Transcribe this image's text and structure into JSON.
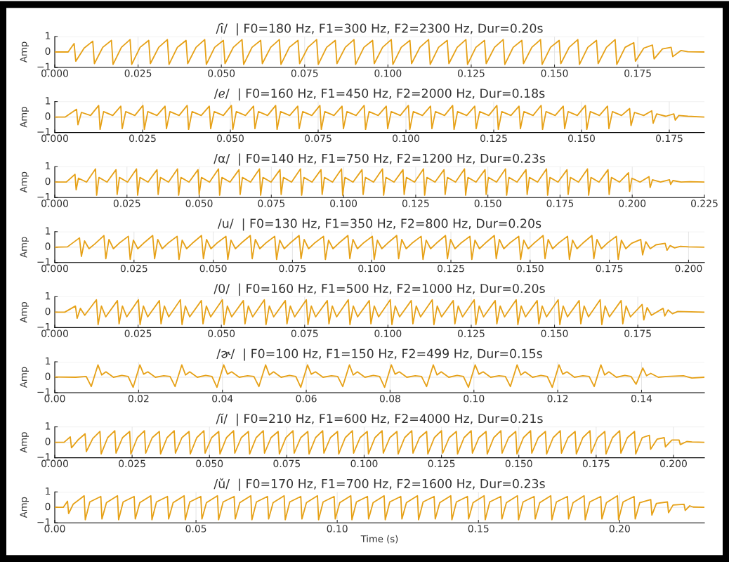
{
  "chart_data": [
    {
      "type": "line",
      "title": "/ȋ/  | F0=180 Hz, F1=300 Hz, F2=2300 Hz, Dur=0.20s",
      "ylabel": "Amp",
      "color": "#e6a117",
      "grid": true,
      "xlim": [
        0,
        0.195
      ],
      "ylim": [
        -1,
        1
      ],
      "xticks": [
        {
          "value": 0,
          "label": "0.000"
        },
        {
          "value": 0.025,
          "label": "0.025"
        },
        {
          "value": 0.05,
          "label": "0.050"
        },
        {
          "value": 0.075,
          "label": "0.075"
        },
        {
          "value": 0.1,
          "label": "0.100"
        },
        {
          "value": 0.125,
          "label": "0.125"
        },
        {
          "value": 0.15,
          "label": "0.150"
        },
        {
          "value": 0.175,
          "label": "0.175"
        }
      ],
      "yticks": [
        -1,
        0,
        1
      ],
      "x": [
        0,
        0.004,
        0.0058,
        0.0063,
        0.0088,
        0.0114,
        0.0119,
        0.0144,
        0.017,
        0.0175,
        0.02,
        0.0226,
        0.0231,
        0.0256,
        0.0282,
        0.0287,
        0.0312,
        0.0338,
        0.0343,
        0.0368,
        0.0394,
        0.0399,
        0.0424,
        0.045,
        0.0455,
        0.048,
        0.0506,
        0.0511,
        0.0536,
        0.0562,
        0.0567,
        0.0592,
        0.0618,
        0.0623,
        0.0648,
        0.0674,
        0.0679,
        0.0704,
        0.073,
        0.0735,
        0.076,
        0.0786,
        0.0791,
        0.0816,
        0.0842,
        0.0847,
        0.0872,
        0.0898,
        0.0903,
        0.0928,
        0.0954,
        0.0959,
        0.0984,
        0.101,
        0.1015,
        0.104,
        0.1066,
        0.1071,
        0.1096,
        0.1122,
        0.1127,
        0.1152,
        0.1178,
        0.1183,
        0.1208,
        0.1234,
        0.1239,
        0.1264,
        0.129,
        0.1295,
        0.132,
        0.1346,
        0.1351,
        0.1376,
        0.1402,
        0.1407,
        0.1432,
        0.1458,
        0.1463,
        0.1488,
        0.1514,
        0.1519,
        0.1544,
        0.157,
        0.1575,
        0.16,
        0.1626,
        0.1631,
        0.1656,
        0.1682,
        0.1687,
        0.1712,
        0.1738,
        0.1743,
        0.1768,
        0.1794,
        0.1799,
        0.1824,
        0.185,
        0.1855,
        0.188,
        0.19,
        0.195
      ],
      "values": [
        0,
        0,
        0.55,
        -0.6,
        0.25,
        0.7,
        -0.75,
        0.3,
        0.75,
        -0.8,
        0.3,
        0.8,
        -0.8,
        0.3,
        0.75,
        -0.75,
        0.3,
        0.8,
        -0.8,
        0.3,
        0.75,
        -0.75,
        0.3,
        0.8,
        -0.8,
        0.3,
        0.75,
        -0.75,
        0.3,
        0.8,
        -0.8,
        0.3,
        0.75,
        -0.75,
        0.3,
        0.8,
        -0.8,
        0.3,
        0.75,
        -0.75,
        0.3,
        0.8,
        -0.8,
        0.3,
        0.75,
        -0.75,
        0.3,
        0.8,
        -0.8,
        0.3,
        0.75,
        -0.75,
        0.3,
        0.8,
        -0.8,
        0.3,
        0.75,
        -0.75,
        0.3,
        0.8,
        -0.8,
        0.3,
        0.75,
        -0.75,
        0.3,
        0.8,
        -0.8,
        0.3,
        0.75,
        -0.75,
        0.3,
        0.8,
        -0.8,
        0.3,
        0.75,
        -0.75,
        0.3,
        0.8,
        -0.8,
        0.3,
        0.75,
        -0.75,
        0.3,
        0.8,
        -0.8,
        0.3,
        0.75,
        -0.75,
        0.3,
        0.8,
        -0.8,
        0.3,
        0.6,
        -0.6,
        0.25,
        0.45,
        -0.45,
        0.2,
        0.3,
        -0.3,
        0.1,
        0.02,
        0
      ]
    },
    {
      "type": "line",
      "title": "/ℯ/  | F0=160 Hz, F1=450 Hz, F2=2000 Hz, Dur=0.18s",
      "ylabel": "Amp",
      "color": "#e6a117",
      "grid": true,
      "xlim": [
        0,
        0.185
      ],
      "ylim": [
        -1,
        1
      ],
      "xticks": [
        {
          "value": 0,
          "label": "0.000"
        },
        {
          "value": 0.025,
          "label": "0.025"
        },
        {
          "value": 0.05,
          "label": "0.050"
        },
        {
          "value": 0.075,
          "label": "0.075"
        },
        {
          "value": 0.1,
          "label": "0.100"
        },
        {
          "value": 0.125,
          "label": "0.125"
        },
        {
          "value": 0.15,
          "label": "0.150"
        },
        {
          "value": 0.175,
          "label": "0.175"
        }
      ],
      "yticks": [
        -1,
        0,
        1
      ],
      "x": [
        0,
        0.003,
        0.0062,
        0.0066,
        0.0076,
        0.0102,
        0.0125,
        0.0129,
        0.0139,
        0.0165,
        0.0188,
        0.0192,
        0.0202,
        0.0228,
        0.0251,
        0.0255,
        0.0265,
        0.0291,
        0.0314,
        0.0318,
        0.0328,
        0.0354,
        0.0377,
        0.0381,
        0.0391,
        0.0417,
        0.044,
        0.0444,
        0.0454,
        0.048,
        0.0503,
        0.0507,
        0.0517,
        0.0543,
        0.0566,
        0.057,
        0.058,
        0.0606,
        0.0629,
        0.0633,
        0.0643,
        0.0669,
        0.0692,
        0.0696,
        0.0706,
        0.0732,
        0.0755,
        0.0759,
        0.0769,
        0.0795,
        0.0818,
        0.0822,
        0.0832,
        0.0858,
        0.0881,
        0.0885,
        0.0895,
        0.0921,
        0.0944,
        0.0948,
        0.0958,
        0.0984,
        0.1007,
        0.1011,
        0.1021,
        0.1047,
        0.107,
        0.1074,
        0.1084,
        0.111,
        0.1133,
        0.1137,
        0.1147,
        0.1173,
        0.1196,
        0.12,
        0.121,
        0.1236,
        0.1259,
        0.1263,
        0.1273,
        0.1299,
        0.1322,
        0.1326,
        0.1336,
        0.1362,
        0.1385,
        0.1389,
        0.1399,
        0.1425,
        0.1448,
        0.1452,
        0.1462,
        0.1488,
        0.1511,
        0.1515,
        0.1525,
        0.1551,
        0.1574,
        0.1578,
        0.1588,
        0.1614,
        0.1637,
        0.1641,
        0.1651,
        0.1677,
        0.17,
        0.1704,
        0.1714,
        0.174,
        0.1763,
        0.1767,
        0.1777,
        0.1803,
        0.185
      ],
      "values": [
        0,
        0,
        0.5,
        -0.5,
        0.3,
        0.1,
        0.75,
        -0.8,
        0.35,
        0.1,
        0.7,
        -0.75,
        0.35,
        0.1,
        0.75,
        -0.8,
        0.35,
        0.1,
        0.7,
        -0.75,
        0.35,
        0.1,
        0.75,
        -0.8,
        0.35,
        0.1,
        0.7,
        -0.75,
        0.35,
        0.1,
        0.75,
        -0.8,
        0.35,
        0.1,
        0.7,
        -0.75,
        0.35,
        0.1,
        0.75,
        -0.8,
        0.35,
        0.1,
        0.7,
        -0.75,
        0.35,
        0.1,
        0.75,
        -0.8,
        0.35,
        0.1,
        0.7,
        -0.75,
        0.35,
        0.1,
        0.75,
        -0.8,
        0.35,
        0.1,
        0.7,
        -0.75,
        0.35,
        0.1,
        0.75,
        -0.8,
        0.35,
        0.1,
        0.7,
        -0.75,
        0.35,
        0.1,
        0.75,
        -0.8,
        0.35,
        0.1,
        0.7,
        -0.75,
        0.35,
        0.1,
        0.75,
        -0.8,
        0.35,
        0.1,
        0.7,
        -0.75,
        0.35,
        0.1,
        0.75,
        -0.8,
        0.35,
        0.1,
        0.7,
        -0.75,
        0.35,
        0.1,
        0.75,
        -0.8,
        0.35,
        0.1,
        0.7,
        -0.75,
        0.35,
        0.1,
        0.55,
        -0.55,
        0.3,
        0.1,
        0.4,
        -0.4,
        0.2,
        0.05,
        0.2,
        -0.2,
        0.1,
        0.05,
        0
      ]
    },
    {
      "type": "line",
      "title": "/α/  | F0=140 Hz, F1=750 Hz, F2=1200 Hz, Dur=0.23s",
      "ylabel": "Amp",
      "color": "#e6a117",
      "grid": true,
      "xlim": [
        0,
        0.225
      ],
      "ylim": [
        -1,
        1
      ],
      "xticks": [
        {
          "value": 0,
          "label": "0.000"
        },
        {
          "value": 0.025,
          "label": "0.025"
        },
        {
          "value": 0.05,
          "label": "0.050"
        },
        {
          "value": 0.075,
          "label": "0.075"
        },
        {
          "value": 0.1,
          "label": "0.100"
        },
        {
          "value": 0.125,
          "label": "0.125"
        },
        {
          "value": 0.15,
          "label": "0.150"
        },
        {
          "value": 0.175,
          "label": "0.175"
        },
        {
          "value": 0.2,
          "label": "0.200"
        },
        {
          "value": 0.225,
          "label": "0.225"
        }
      ],
      "yticks": [
        -1,
        0,
        1
      ],
      "x": [
        0,
        0.004,
        0.007,
        0.0074,
        0.0082,
        0.011,
        0.0141,
        0.0145,
        0.0153,
        0.0181,
        0.0212,
        0.0216,
        0.0224,
        0.0252,
        0.0283,
        0.0287,
        0.0295,
        0.0323,
        0.0354,
        0.0358,
        0.0366,
        0.0394,
        0.0425,
        0.0429,
        0.0437,
        0.0465,
        0.0496,
        0.05,
        0.0508,
        0.0536,
        0.0567,
        0.0571,
        0.0579,
        0.0607,
        0.0638,
        0.0642,
        0.065,
        0.0678,
        0.0709,
        0.0713,
        0.0721,
        0.0749,
        0.078,
        0.0784,
        0.0792,
        0.082,
        0.0851,
        0.0855,
        0.0863,
        0.0891,
        0.0922,
        0.0926,
        0.0934,
        0.0962,
        0.0993,
        0.0997,
        0.1005,
        0.1033,
        0.1064,
        0.1068,
        0.1076,
        0.1104,
        0.1135,
        0.1139,
        0.1147,
        0.1175,
        0.1206,
        0.121,
        0.1218,
        0.1246,
        0.1277,
        0.1281,
        0.1289,
        0.1317,
        0.1348,
        0.1352,
        0.136,
        0.1388,
        0.1419,
        0.1423,
        0.1431,
        0.1459,
        0.149,
        0.1494,
        0.1502,
        0.153,
        0.1561,
        0.1565,
        0.1573,
        0.1601,
        0.1632,
        0.1636,
        0.1644,
        0.1672,
        0.1703,
        0.1707,
        0.1715,
        0.1743,
        0.1774,
        0.1778,
        0.1786,
        0.1814,
        0.1845,
        0.1849,
        0.1857,
        0.1885,
        0.1916,
        0.192,
        0.1928,
        0.1956,
        0.1987,
        0.1991,
        0.1999,
        0.2027,
        0.2058,
        0.2062,
        0.207,
        0.2098,
        0.2129,
        0.2133,
        0.2141,
        0.2169,
        0.22,
        0.225
      ],
      "values": [
        0,
        0,
        0.5,
        -0.5,
        0.25,
        0,
        0.85,
        -0.85,
        0.3,
        0,
        0.8,
        -0.8,
        0.3,
        0,
        0.85,
        -0.85,
        0.3,
        0,
        0.8,
        -0.8,
        0.3,
        0,
        0.85,
        -0.85,
        0.3,
        0,
        0.8,
        -0.8,
        0.3,
        0,
        0.85,
        -0.85,
        0.3,
        0,
        0.8,
        -0.8,
        0.3,
        0,
        0.85,
        -0.85,
        0.3,
        0,
        0.8,
        -0.8,
        0.3,
        0,
        0.85,
        -0.85,
        0.3,
        0,
        0.8,
        -0.8,
        0.3,
        0,
        0.85,
        -0.85,
        0.3,
        0,
        0.8,
        -0.8,
        0.3,
        0,
        0.85,
        -0.85,
        0.3,
        0,
        0.8,
        -0.8,
        0.3,
        0,
        0.85,
        -0.85,
        0.3,
        0,
        0.8,
        -0.8,
        0.3,
        0,
        0.85,
        -0.85,
        0.3,
        0,
        0.8,
        -0.8,
        0.3,
        0,
        0.85,
        -0.85,
        0.3,
        0,
        0.8,
        -0.8,
        0.3,
        0,
        0.85,
        -0.85,
        0.3,
        0,
        0.8,
        -0.8,
        0.3,
        0,
        0.85,
        -0.85,
        0.3,
        0,
        0.8,
        -0.8,
        0.3,
        0,
        0.6,
        -0.6,
        0.25,
        0,
        0.35,
        -0.35,
        0.15,
        0,
        0.15,
        -0.15,
        0.1,
        0,
        0.03,
        0
      ]
    },
    {
      "type": "line",
      "title": "/u/  | F0=130 Hz, F1=350 Hz, F2=800 Hz, Dur=0.20s",
      "ylabel": "Amp",
      "color": "#e6a117",
      "grid": true,
      "xlim": [
        0,
        0.205
      ],
      "ylim": [
        -1,
        1
      ],
      "xticks": [
        {
          "value": 0,
          "label": "0.000"
        },
        {
          "value": 0.025,
          "label": "0.025"
        },
        {
          "value": 0.05,
          "label": "0.050"
        },
        {
          "value": 0.075,
          "label": "0.075"
        },
        {
          "value": 0.1,
          "label": "0.100"
        },
        {
          "value": 0.125,
          "label": "0.125"
        },
        {
          "value": 0.15,
          "label": "0.150"
        },
        {
          "value": 0.175,
          "label": "0.175"
        },
        {
          "value": 0.2,
          "label": "0.200"
        }
      ],
      "yticks": [
        -1,
        0,
        1
      ],
      "x": [
        0,
        0.004,
        0.0078,
        0.0084,
        0.0094,
        0.0108,
        0.0126,
        0.0155,
        0.0161,
        0.0171,
        0.0185,
        0.0203,
        0.0232,
        0.0238,
        0.0248,
        0.0262,
        0.028,
        0.0309,
        0.0315,
        0.0325,
        0.0339,
        0.0357,
        0.0386,
        0.0392,
        0.0402,
        0.0416,
        0.0434,
        0.0463,
        0.0469,
        0.0479,
        0.0493,
        0.0511,
        0.054,
        0.0546,
        0.0556,
        0.057,
        0.0588,
        0.0617,
        0.0623,
        0.0633,
        0.0647,
        0.0665,
        0.0694,
        0.07,
        0.071,
        0.0724,
        0.0742,
        0.0771,
        0.0777,
        0.0787,
        0.0801,
        0.0819,
        0.0848,
        0.0854,
        0.0864,
        0.0878,
        0.0896,
        0.0925,
        0.0931,
        0.0941,
        0.0955,
        0.0973,
        0.1002,
        0.1008,
        0.1018,
        0.1032,
        0.105,
        0.1079,
        0.1085,
        0.1095,
        0.1109,
        0.1127,
        0.1156,
        0.1162,
        0.1172,
        0.1186,
        0.1204,
        0.1233,
        0.1239,
        0.1249,
        0.1263,
        0.1281,
        0.131,
        0.1316,
        0.1326,
        0.134,
        0.1358,
        0.1387,
        0.1393,
        0.1403,
        0.1417,
        0.1435,
        0.1464,
        0.147,
        0.148,
        0.1494,
        0.1512,
        0.1541,
        0.1547,
        0.1557,
        0.1571,
        0.1589,
        0.1618,
        0.1624,
        0.1634,
        0.1648,
        0.1666,
        0.1695,
        0.1701,
        0.1711,
        0.1725,
        0.1743,
        0.1772,
        0.1778,
        0.1788,
        0.1802,
        0.182,
        0.1849,
        0.1855,
        0.1865,
        0.1879,
        0.1897,
        0.1926,
        0.1932,
        0.1942,
        0.1956,
        0.1974,
        0.2,
        0.205
      ],
      "values": [
        0,
        0.02,
        0.6,
        -0.6,
        0.4,
        -0.1,
        0.2,
        0.75,
        -0.75,
        0.5,
        -0.1,
        0.25,
        0.7,
        -0.8,
        0.45,
        -0.1,
        0.25,
        0.75,
        -0.75,
        0.5,
        -0.1,
        0.25,
        0.7,
        -0.8,
        0.45,
        -0.1,
        0.25,
        0.75,
        -0.75,
        0.5,
        -0.1,
        0.25,
        0.7,
        -0.8,
        0.45,
        -0.1,
        0.25,
        0.75,
        -0.75,
        0.5,
        -0.1,
        0.25,
        0.7,
        -0.8,
        0.45,
        -0.1,
        0.25,
        0.75,
        -0.75,
        0.5,
        -0.1,
        0.25,
        0.7,
        -0.8,
        0.45,
        -0.1,
        0.25,
        0.75,
        -0.75,
        0.5,
        -0.1,
        0.25,
        0.7,
        -0.8,
        0.45,
        -0.1,
        0.25,
        0.75,
        -0.75,
        0.5,
        -0.1,
        0.25,
        0.7,
        -0.8,
        0.45,
        -0.1,
        0.25,
        0.75,
        -0.75,
        0.5,
        -0.1,
        0.25,
        0.7,
        -0.8,
        0.45,
        -0.1,
        0.25,
        0.75,
        -0.75,
        0.5,
        -0.1,
        0.25,
        0.7,
        -0.8,
        0.45,
        -0.1,
        0.25,
        0.75,
        -0.75,
        0.5,
        -0.1,
        0.25,
        0.7,
        -0.8,
        0.45,
        -0.1,
        0.25,
        0.75,
        -0.75,
        0.5,
        -0.1,
        0.25,
        0.7,
        -0.8,
        0.45,
        -0.1,
        0.25,
        0.5,
        -0.5,
        0.35,
        -0.1,
        0.15,
        0.25,
        -0.2,
        0.1,
        -0.05,
        0.05,
        0.02,
        0
      ]
    },
    {
      "type": "line",
      "title": "/0/  | F0=160 Hz, F1=500 Hz, F2=1000 Hz, Dur=0.20s",
      "ylabel": "Amp",
      "color": "#e6a117",
      "grid": true,
      "xlim": [
        0,
        0.195
      ],
      "ylim": [
        -1,
        1
      ],
      "xticks": [
        {
          "value": 0,
          "label": "0.000"
        },
        {
          "value": 0.025,
          "label": "0.025"
        },
        {
          "value": 0.05,
          "label": "0.050"
        },
        {
          "value": 0.075,
          "label": "0.075"
        },
        {
          "value": 0.1,
          "label": "0.100"
        },
        {
          "value": 0.125,
          "label": "0.125"
        },
        {
          "value": 0.15,
          "label": "0.150"
        },
        {
          "value": 0.175,
          "label": "0.175"
        }
      ],
      "yticks": [
        -1,
        0,
        1
      ],
      "x": [
        0,
        0.003,
        0.0062,
        0.0067,
        0.0077,
        0.009,
        0.0125,
        0.013,
        0.014,
        0.0153,
        0.0188,
        0.0193,
        0.0203,
        0.0216,
        0.0251,
        0.0256,
        0.0266,
        0.0279,
        0.0314,
        0.0319,
        0.0329,
        0.0342,
        0.0377,
        0.0382,
        0.0392,
        0.0405,
        0.044,
        0.0445,
        0.0455,
        0.0468,
        0.0503,
        0.0508,
        0.0518,
        0.0531,
        0.0566,
        0.0571,
        0.0581,
        0.0594,
        0.0629,
        0.0634,
        0.0644,
        0.0657,
        0.0692,
        0.0697,
        0.0707,
        0.072,
        0.0755,
        0.076,
        0.077,
        0.0783,
        0.0818,
        0.0823,
        0.0833,
        0.0846,
        0.0881,
        0.0886,
        0.0896,
        0.0909,
        0.0944,
        0.0949,
        0.0959,
        0.0972,
        0.1007,
        0.1012,
        0.1022,
        0.1035,
        0.107,
        0.1075,
        0.1085,
        0.1098,
        0.1133,
        0.1138,
        0.1148,
        0.1161,
        0.1196,
        0.1201,
        0.1211,
        0.1224,
        0.1259,
        0.1264,
        0.1274,
        0.1287,
        0.1322,
        0.1327,
        0.1337,
        0.135,
        0.1385,
        0.139,
        0.14,
        0.1413,
        0.1448,
        0.1453,
        0.1463,
        0.1476,
        0.1511,
        0.1516,
        0.1526,
        0.1539,
        0.1574,
        0.1579,
        0.1589,
        0.1602,
        0.1637,
        0.1642,
        0.1652,
        0.1665,
        0.17,
        0.1705,
        0.1715,
        0.1728,
        0.1763,
        0.1768,
        0.1778,
        0.1791,
        0.1826,
        0.1831,
        0.1841,
        0.1854,
        0.187,
        0.195
      ],
      "values": [
        0,
        0,
        0.4,
        -0.4,
        0.25,
        -0.2,
        0.8,
        -0.8,
        0.4,
        -0.3,
        0.75,
        -0.75,
        0.4,
        -0.3,
        0.8,
        -0.8,
        0.4,
        -0.3,
        0.75,
        -0.75,
        0.4,
        -0.3,
        0.8,
        -0.8,
        0.4,
        -0.3,
        0.75,
        -0.75,
        0.4,
        -0.3,
        0.8,
        -0.8,
        0.4,
        -0.3,
        0.75,
        -0.75,
        0.4,
        -0.3,
        0.8,
        -0.8,
        0.4,
        -0.3,
        0.75,
        -0.75,
        0.4,
        -0.3,
        0.8,
        -0.8,
        0.4,
        -0.3,
        0.75,
        -0.75,
        0.4,
        -0.3,
        0.8,
        -0.8,
        0.4,
        -0.3,
        0.75,
        -0.75,
        0.4,
        -0.3,
        0.8,
        -0.8,
        0.4,
        -0.3,
        0.75,
        -0.75,
        0.4,
        -0.3,
        0.8,
        -0.8,
        0.4,
        -0.3,
        0.75,
        -0.75,
        0.4,
        -0.3,
        0.8,
        -0.8,
        0.4,
        -0.3,
        0.75,
        -0.75,
        0.4,
        -0.3,
        0.8,
        -0.8,
        0.4,
        -0.3,
        0.75,
        -0.75,
        0.4,
        -0.3,
        0.8,
        -0.8,
        0.4,
        -0.3,
        0.75,
        -0.75,
        0.4,
        -0.3,
        0.8,
        -0.8,
        0.4,
        -0.3,
        0.75,
        -0.75,
        0.4,
        -0.3,
        0.5,
        -0.5,
        0.3,
        -0.2,
        0.25,
        -0.25,
        0.15,
        -0.1,
        0.05,
        0
      ]
    },
    {
      "type": "line",
      "title": "/ɚ/  | F0=100 Hz, F1=150 Hz, F2=499 Hz, Dur=0.15s",
      "ylabel": "Amp",
      "color": "#e6a117",
      "grid": true,
      "xlim": [
        0,
        0.155
      ],
      "ylim": [
        -1,
        1
      ],
      "xticks": [
        {
          "value": 0,
          "label": "0.00"
        },
        {
          "value": 0.02,
          "label": "0.02"
        },
        {
          "value": 0.04,
          "label": "0.04"
        },
        {
          "value": 0.06,
          "label": "0.06"
        },
        {
          "value": 0.08,
          "label": "0.08"
        },
        {
          "value": 0.1,
          "label": "0.10"
        },
        {
          "value": 0.12,
          "label": "0.12"
        },
        {
          "value": 0.14,
          "label": "0.14"
        }
      ],
      "yticks": [
        -1,
        0,
        1
      ],
      "x": [
        0,
        0.005,
        0.0075,
        0.0087,
        0.0103,
        0.0112,
        0.0122,
        0.014,
        0.016,
        0.0175,
        0.0187,
        0.0203,
        0.0212,
        0.0222,
        0.024,
        0.026,
        0.0275,
        0.0287,
        0.0303,
        0.0312,
        0.0322,
        0.034,
        0.036,
        0.0375,
        0.0387,
        0.0403,
        0.0412,
        0.0422,
        0.044,
        0.046,
        0.0475,
        0.0487,
        0.0503,
        0.0512,
        0.0522,
        0.054,
        0.056,
        0.0575,
        0.0587,
        0.0603,
        0.0612,
        0.0622,
        0.064,
        0.066,
        0.0675,
        0.0687,
        0.0703,
        0.0712,
        0.0722,
        0.074,
        0.076,
        0.0775,
        0.0787,
        0.0803,
        0.0812,
        0.0822,
        0.084,
        0.086,
        0.0875,
        0.0887,
        0.0903,
        0.0912,
        0.0922,
        0.094,
        0.096,
        0.0975,
        0.0987,
        0.1003,
        0.1012,
        0.1022,
        0.104,
        0.106,
        0.1075,
        0.1087,
        0.1103,
        0.1112,
        0.1122,
        0.114,
        0.116,
        0.1175,
        0.1187,
        0.1203,
        0.1212,
        0.1222,
        0.124,
        0.126,
        0.1275,
        0.1287,
        0.1303,
        0.1312,
        0.1322,
        0.134,
        0.136,
        0.1375,
        0.1387,
        0.1403,
        0.1412,
        0.1422,
        0.144,
        0.146,
        0.15,
        0.152,
        0.155
      ],
      "values": [
        0.02,
        0,
        0.05,
        -0.6,
        0.8,
        0.15,
        0.35,
        0,
        0.12,
        0.05,
        -0.65,
        0.8,
        0.2,
        0.35,
        0,
        0.1,
        0.05,
        -0.6,
        0.8,
        0.15,
        0.35,
        0,
        0.12,
        0.05,
        -0.65,
        0.8,
        0.2,
        0.35,
        0,
        0.1,
        0.05,
        -0.6,
        0.8,
        0.15,
        0.35,
        0,
        0.12,
        0.05,
        -0.65,
        0.8,
        0.2,
        0.35,
        0,
        0.1,
        0.05,
        -0.6,
        0.8,
        0.15,
        0.35,
        0,
        0.12,
        0.05,
        -0.65,
        0.8,
        0.2,
        0.35,
        0,
        0.1,
        0.05,
        -0.6,
        0.8,
        0.15,
        0.35,
        0,
        0.12,
        0.05,
        -0.65,
        0.8,
        0.2,
        0.35,
        0,
        0.1,
        0.05,
        -0.6,
        0.8,
        0.15,
        0.35,
        0,
        0.12,
        0.05,
        -0.65,
        0.8,
        0.2,
        0.35,
        0,
        0.1,
        0.05,
        -0.6,
        0.8,
        0.15,
        0.35,
        0,
        0.12,
        0.05,
        -0.45,
        0.6,
        0.1,
        0.25,
        0,
        0.05,
        0.1,
        -0.05,
        0
      ]
    },
    {
      "type": "line",
      "title": "/ĭ/  | F0=210 Hz, F1=600 Hz, F2=4000 Hz, Dur=0.21s",
      "ylabel": "Amp",
      "color": "#e6a117",
      "grid": true,
      "xlim": [
        0,
        0.21
      ],
      "ylim": [
        -1,
        1
      ],
      "xticks": [
        {
          "value": 0,
          "label": "0.000"
        },
        {
          "value": 0.025,
          "label": "0.025"
        },
        {
          "value": 0.05,
          "label": "0.050"
        },
        {
          "value": 0.075,
          "label": "0.075"
        },
        {
          "value": 0.1,
          "label": "0.100"
        },
        {
          "value": 0.125,
          "label": "0.125"
        },
        {
          "value": 0.15,
          "label": "0.150"
        },
        {
          "value": 0.175,
          "label": "0.175"
        },
        {
          "value": 0.2,
          "label": "0.200"
        }
      ],
      "yticks": [
        -1,
        0,
        1
      ],
      "x": [
        0,
        0.003,
        0.005,
        0.0054,
        0.0075,
        0.0098,
        0.0102,
        0.0123,
        0.0146,
        0.015,
        0.0171,
        0.0194,
        0.0198,
        0.0219,
        0.0242,
        0.0246,
        0.0267,
        0.029,
        0.0294,
        0.0315,
        0.0338,
        0.0342,
        0.0363,
        0.0386,
        0.039,
        0.0411,
        0.0434,
        0.0438,
        0.0459,
        0.0482,
        0.0486,
        0.0507,
        0.053,
        0.0534,
        0.0555,
        0.0578,
        0.0582,
        0.0603,
        0.0626,
        0.063,
        0.0651,
        0.0674,
        0.0678,
        0.0699,
        0.0722,
        0.0726,
        0.0747,
        0.077,
        0.0774,
        0.0795,
        0.0818,
        0.0822,
        0.0843,
        0.0866,
        0.087,
        0.0891,
        0.0914,
        0.0918,
        0.0939,
        0.0962,
        0.0966,
        0.0987,
        0.101,
        0.1014,
        0.1035,
        0.1058,
        0.1062,
        0.1083,
        0.1106,
        0.111,
        0.1131,
        0.1154,
        0.1158,
        0.1179,
        0.1202,
        0.1206,
        0.1227,
        0.125,
        0.1254,
        0.1275,
        0.1298,
        0.1302,
        0.1323,
        0.1346,
        0.135,
        0.1371,
        0.1394,
        0.1398,
        0.1419,
        0.1442,
        0.1446,
        0.1467,
        0.149,
        0.1494,
        0.1515,
        0.1538,
        0.1542,
        0.1563,
        0.1586,
        0.159,
        0.1611,
        0.1634,
        0.1638,
        0.1659,
        0.1682,
        0.1686,
        0.1707,
        0.173,
        0.1734,
        0.1755,
        0.1778,
        0.1782,
        0.1803,
        0.1826,
        0.183,
        0.1851,
        0.1874,
        0.1878,
        0.1899,
        0.1922,
        0.1926,
        0.1947,
        0.197,
        0.1974,
        0.1995,
        0.2018,
        0.2022,
        0.2043,
        0.206,
        0.21
      ],
      "values": [
        0,
        0,
        0.35,
        -0.35,
        0.15,
        0.55,
        -0.6,
        0.25,
        0.7,
        -0.75,
        0.3,
        0.75,
        -0.7,
        0.3,
        0.7,
        -0.75,
        0.3,
        0.75,
        -0.7,
        0.3,
        0.7,
        -0.75,
        0.3,
        0.75,
        -0.7,
        0.3,
        0.7,
        -0.75,
        0.3,
        0.75,
        -0.7,
        0.3,
        0.7,
        -0.75,
        0.3,
        0.75,
        -0.7,
        0.3,
        0.7,
        -0.75,
        0.3,
        0.75,
        -0.7,
        0.3,
        0.7,
        -0.75,
        0.3,
        0.75,
        -0.7,
        0.3,
        0.7,
        -0.75,
        0.3,
        0.75,
        -0.7,
        0.3,
        0.7,
        -0.75,
        0.3,
        0.75,
        -0.7,
        0.3,
        0.7,
        -0.75,
        0.3,
        0.75,
        -0.7,
        0.3,
        0.7,
        -0.75,
        0.3,
        0.75,
        -0.7,
        0.3,
        0.7,
        -0.75,
        0.3,
        0.75,
        -0.7,
        0.3,
        0.7,
        -0.75,
        0.3,
        0.75,
        -0.7,
        0.3,
        0.7,
        -0.75,
        0.3,
        0.75,
        -0.7,
        0.3,
        0.7,
        -0.75,
        0.3,
        0.75,
        -0.7,
        0.3,
        0.7,
        -0.75,
        0.3,
        0.75,
        -0.7,
        0.3,
        0.7,
        -0.75,
        0.3,
        0.75,
        -0.7,
        0.3,
        0.7,
        -0.75,
        0.3,
        0.75,
        -0.7,
        0.3,
        0.7,
        -0.75,
        0.3,
        0.45,
        -0.45,
        0.2,
        0.3,
        -0.3,
        0.15,
        0.15,
        -0.15,
        0.05,
        0.02,
        0
      ]
    },
    {
      "type": "line",
      "title": "/ǔ/  | F0=170 Hz, F1=700 Hz, F2=1600 Hz, Dur=0.23s",
      "ylabel": "Amp",
      "xlabel": "Time (s)",
      "color": "#e6a117",
      "grid": true,
      "xlim": [
        0,
        0.23
      ],
      "ylim": [
        -1,
        1
      ],
      "xticks": [
        {
          "value": 0,
          "label": "0.00"
        },
        {
          "value": 0.05,
          "label": "0.05"
        },
        {
          "value": 0.1,
          "label": "0.10"
        },
        {
          "value": 0.15,
          "label": "0.15"
        },
        {
          "value": 0.2,
          "label": "0.20"
        }
      ],
      "yticks": [
        -1,
        0,
        1
      ],
      "x": [
        0,
        0.003,
        0.0045,
        0.0049,
        0.0065,
        0.0104,
        0.0108,
        0.0124,
        0.0163,
        0.0167,
        0.0183,
        0.0222,
        0.0226,
        0.0242,
        0.0281,
        0.0285,
        0.0301,
        0.034,
        0.0344,
        0.036,
        0.0399,
        0.0403,
        0.0419,
        0.0458,
        0.0462,
        0.0478,
        0.0517,
        0.0521,
        0.0537,
        0.0576,
        0.058,
        0.0596,
        0.0635,
        0.0639,
        0.0655,
        0.0694,
        0.0698,
        0.0714,
        0.0753,
        0.0757,
        0.0773,
        0.0812,
        0.0816,
        0.0832,
        0.0871,
        0.0875,
        0.0891,
        0.093,
        0.0934,
        0.095,
        0.0989,
        0.0993,
        0.1009,
        0.1048,
        0.1052,
        0.1068,
        0.1107,
        0.1111,
        0.1127,
        0.1166,
        0.117,
        0.1186,
        0.1225,
        0.1229,
        0.1245,
        0.1284,
        0.1288,
        0.1304,
        0.1343,
        0.1347,
        0.1363,
        0.1402,
        0.1406,
        0.1422,
        0.1461,
        0.1465,
        0.1481,
        0.152,
        0.1524,
        0.154,
        0.1579,
        0.1583,
        0.1599,
        0.1638,
        0.1642,
        0.1658,
        0.1697,
        0.1701,
        0.1717,
        0.1756,
        0.176,
        0.1776,
        0.1815,
        0.1819,
        0.1835,
        0.1874,
        0.1878,
        0.1894,
        0.1933,
        0.1937,
        0.1953,
        0.1992,
        0.1996,
        0.2012,
        0.2051,
        0.2055,
        0.2071,
        0.211,
        0.2114,
        0.213,
        0.2169,
        0.2173,
        0.2189,
        0.2228,
        0.2232,
        0.2248,
        0.226,
        0.23
      ],
      "values": [
        0,
        0,
        0.4,
        -0.4,
        0.2,
        0.75,
        -0.8,
        0.35,
        0.7,
        -0.75,
        0.3,
        0.75,
        -0.8,
        0.35,
        0.7,
        -0.75,
        0.3,
        0.75,
        -0.8,
        0.35,
        0.7,
        -0.75,
        0.3,
        0.75,
        -0.8,
        0.35,
        0.7,
        -0.75,
        0.3,
        0.75,
        -0.8,
        0.35,
        0.7,
        -0.75,
        0.3,
        0.75,
        -0.8,
        0.35,
        0.7,
        -0.75,
        0.3,
        0.75,
        -0.8,
        0.35,
        0.7,
        -0.75,
        0.3,
        0.75,
        -0.8,
        0.35,
        0.7,
        -0.75,
        0.3,
        0.75,
        -0.8,
        0.35,
        0.7,
        -0.75,
        0.3,
        0.75,
        -0.8,
        0.35,
        0.7,
        -0.75,
        0.3,
        0.75,
        -0.8,
        0.35,
        0.7,
        -0.75,
        0.3,
        0.75,
        -0.8,
        0.35,
        0.7,
        -0.75,
        0.3,
        0.75,
        -0.8,
        0.35,
        0.7,
        -0.75,
        0.3,
        0.75,
        -0.8,
        0.35,
        0.7,
        -0.75,
        0.3,
        0.75,
        -0.8,
        0.35,
        0.7,
        -0.75,
        0.3,
        0.75,
        -0.8,
        0.35,
        0.7,
        -0.75,
        0.3,
        0.75,
        -0.8,
        0.35,
        0.7,
        -0.75,
        0.3,
        0.5,
        -0.5,
        0.25,
        0.35,
        -0.35,
        0.15,
        0.2,
        -0.2,
        0.1,
        0.02,
        0
      ]
    }
  ]
}
